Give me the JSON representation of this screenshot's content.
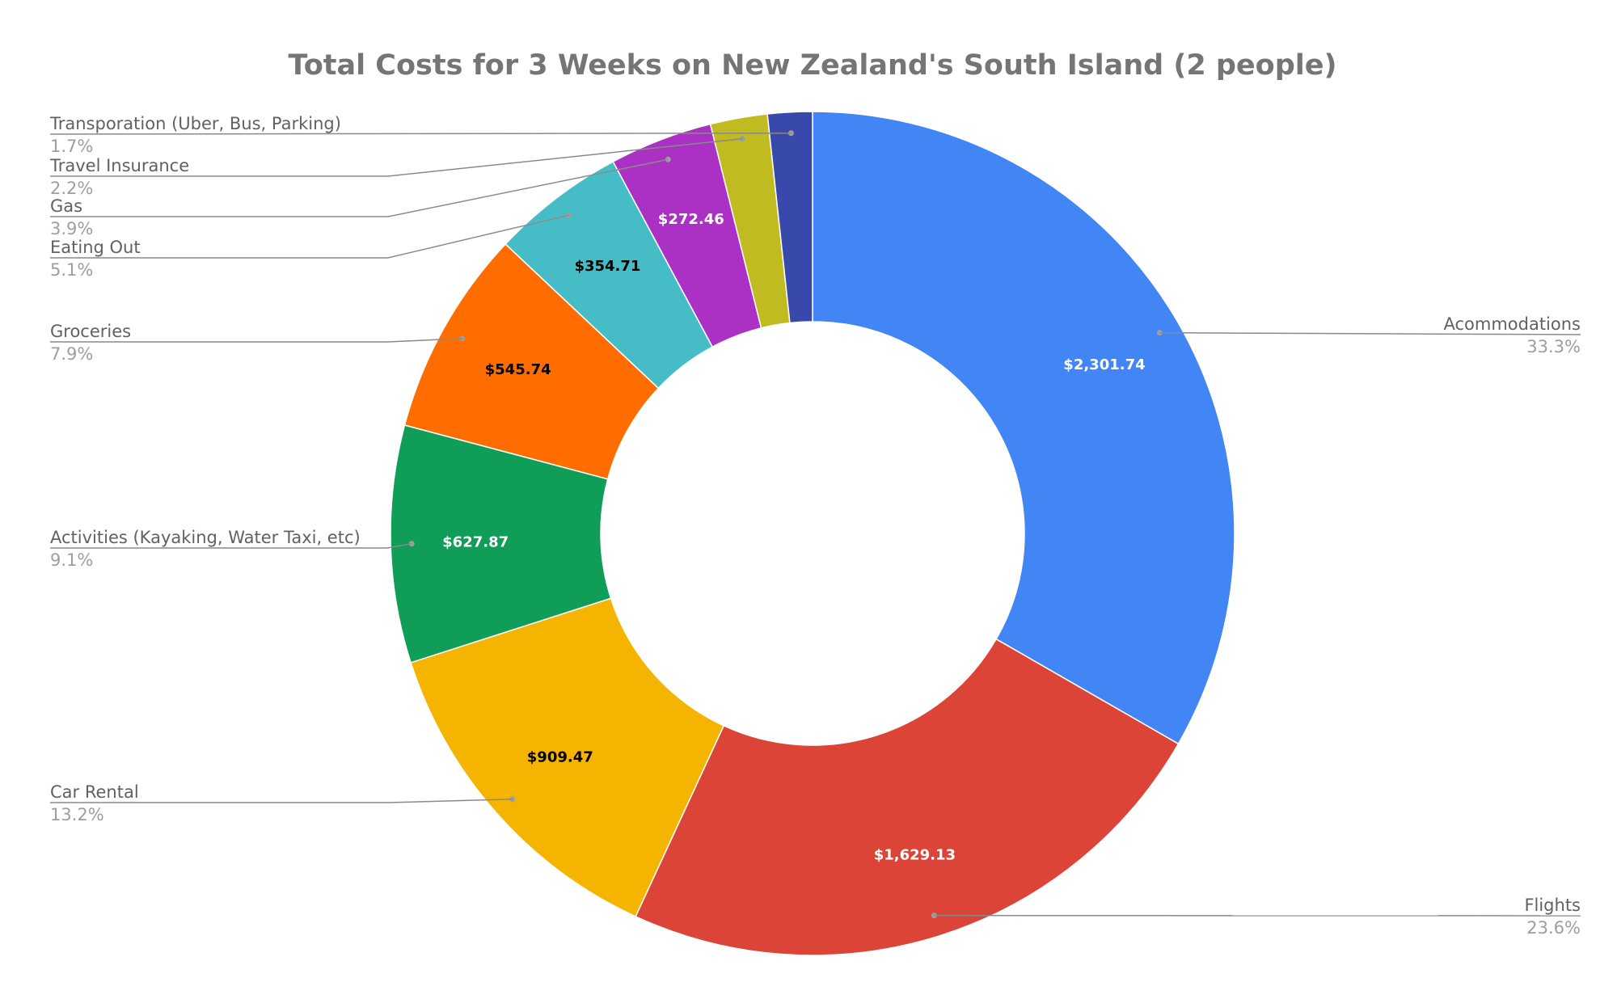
{
  "chart_data": {
    "type": "pie",
    "donut": true,
    "title": "Total Costs for 3 Weeks on New Zealand's South Island (2 people)",
    "slices": [
      {
        "name": "Acommodations",
        "value": 2301.74,
        "value_label": "$2,301.74",
        "pct_label": "33.3%",
        "color": "#4285f4",
        "text_color": "#ffffff"
      },
      {
        "name": "Flights",
        "value": 1629.13,
        "value_label": "$1,629.13",
        "pct_label": "23.6%",
        "color": "#db4437",
        "text_color": "#ffffff"
      },
      {
        "name": "Car Rental",
        "value": 909.47,
        "value_label": "$909.47",
        "pct_label": "13.2%",
        "color": "#f4b400",
        "text_color": "#000000"
      },
      {
        "name": "Activities (Kayaking, Water Taxi, etc)",
        "value": 627.87,
        "value_label": "$627.87",
        "pct_label": "9.1%",
        "color": "#0f9d58",
        "text_color": "#ffffff"
      },
      {
        "name": "Groceries",
        "value": 545.74,
        "value_label": "$545.74",
        "pct_label": "7.9%",
        "color": "#ff6d00",
        "text_color": "#000000"
      },
      {
        "name": "Eating Out",
        "value": 354.71,
        "value_label": "$354.71",
        "pct_label": "5.1%",
        "color": "#46bdc6",
        "text_color": "#000000"
      },
      {
        "name": "Gas",
        "value": 272.46,
        "value_label": "$272.46",
        "pct_label": "3.9%",
        "color": "#ab30c4",
        "text_color": "#ffffff"
      },
      {
        "name": "Travel Insurance",
        "value": 151.0,
        "value_label": "",
        "pct_label": "2.2%",
        "color": "#c0bb21",
        "text_color": "#000000"
      },
      {
        "name": "Transporation (Uber, Bus, Parking)",
        "value": 118.0,
        "value_label": "",
        "pct_label": "1.7%",
        "color": "#3949ab",
        "text_color": "#ffffff"
      }
    ],
    "legend": "leader-lines"
  }
}
